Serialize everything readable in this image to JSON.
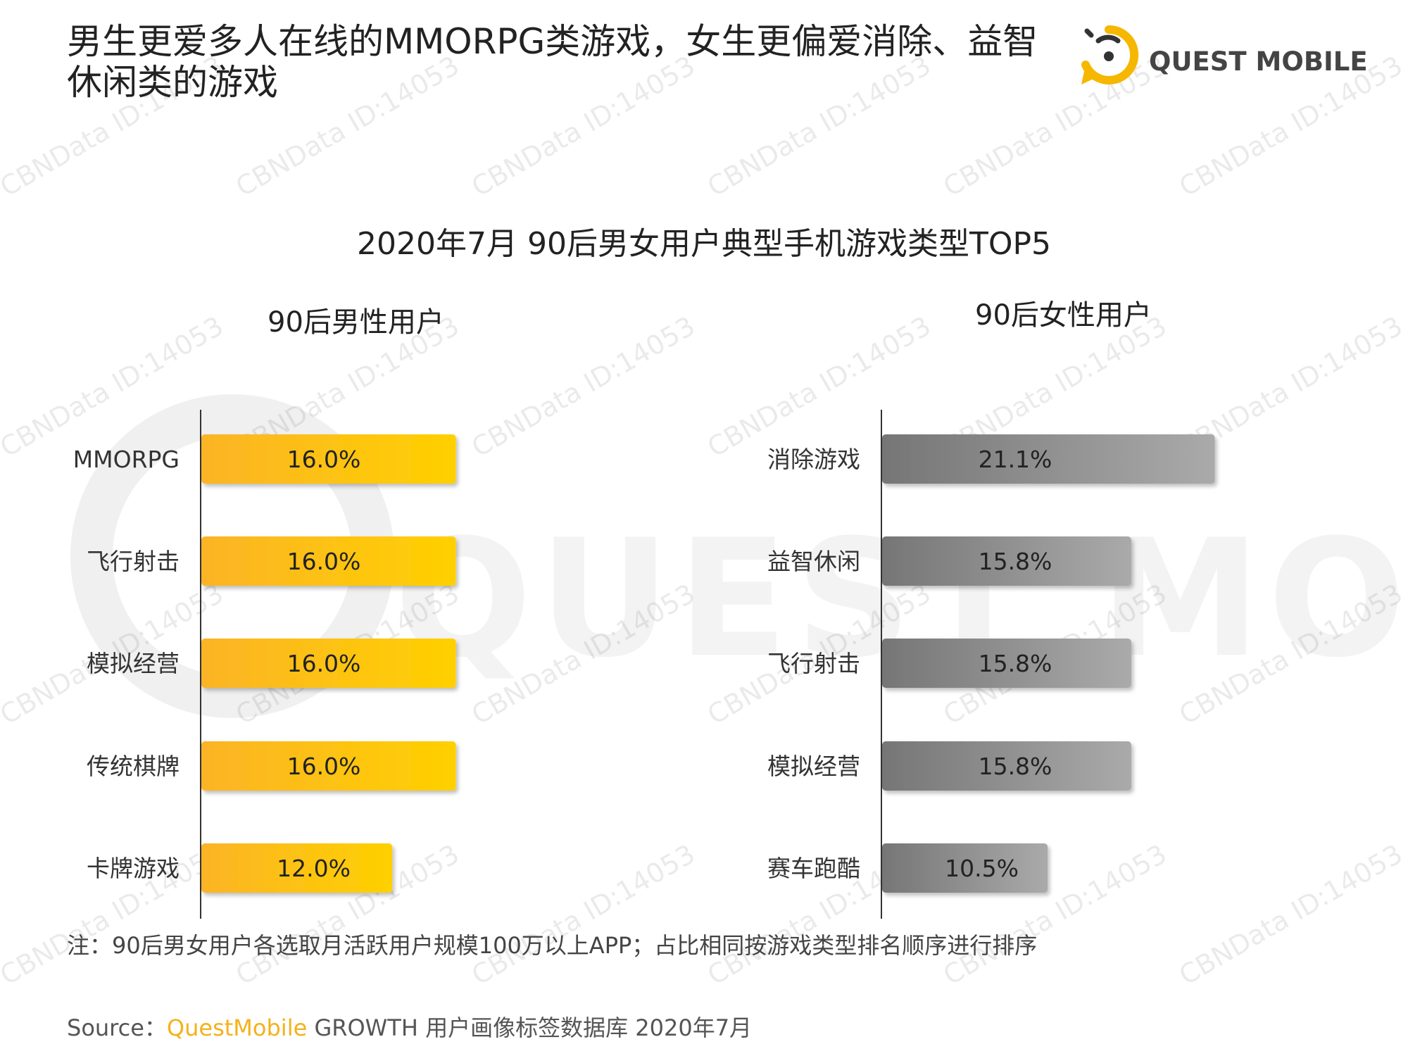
{
  "headline": "男生更爱多人在线的MMORPG类游戏，女生更偏爱消除、益智休闲类的游戏",
  "logo": {
    "text": "QUEST MOBILE"
  },
  "watermark": {
    "text": "CBNData ID:14053",
    "big_text": "QUEST MOBILE"
  },
  "chart_data": [
    {
      "type": "bar",
      "orientation": "horizontal",
      "title": "2020年7月 90后男女用户典型手机游戏类型TOP5",
      "panel_title": "90后男性用户",
      "categories": [
        "MMORPG",
        "飞行射击",
        "模拟经营",
        "传统棋牌",
        "卡牌游戏"
      ],
      "values": [
        16.0,
        16.0,
        16.0,
        16.0,
        12.0
      ],
      "labels": [
        "16.0%",
        "16.0%",
        "16.0%",
        "16.0%",
        "12.0%"
      ],
      "unit": "%",
      "colors": {
        "start": "#fbb426",
        "end": "#ffd000"
      }
    },
    {
      "type": "bar",
      "orientation": "horizontal",
      "panel_title": "90后女性用户",
      "categories": [
        "消除游戏",
        "益智休闲",
        "飞行射击",
        "模拟经营",
        "赛车跑酷"
      ],
      "values": [
        21.1,
        15.8,
        15.8,
        15.8,
        10.5
      ],
      "labels": [
        "21.1%",
        "15.8%",
        "15.8%",
        "15.8%",
        "10.5%"
      ],
      "unit": "%",
      "colors": {
        "start": "#767676",
        "end": "#aaaaaa"
      }
    }
  ],
  "note": "注：90后男女用户各选取月活跃用户规模100万以上APP；占比相同按游戏类型排名顺序进行排序",
  "source": {
    "prefix": "Source：",
    "brand": "QuestMobile",
    "rest": " GROWTH 用户画像标签数据库 2020年7月"
  }
}
